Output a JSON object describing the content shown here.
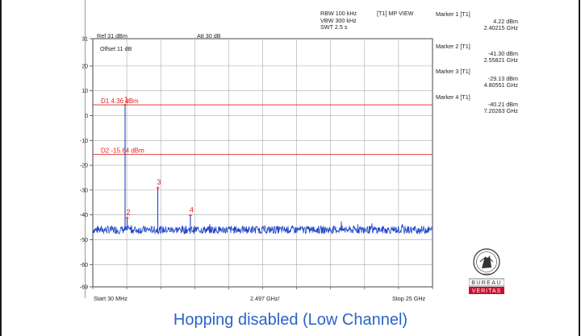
{
  "header": {
    "rbw": "RBW 100 kHz",
    "vbw": "VBW 300 kHz",
    "swt": "SWT 2.5 s",
    "trace_mode": "[T1] MP VIEW",
    "ref_level": "Ref 31 dBm",
    "attenuation": "Att  30 dB",
    "offset": "Offset 11 dB"
  },
  "markers": [
    {
      "name": "Marker 1 [T1]",
      "level": "4.22 dBm",
      "freq": "2.40215 GHz"
    },
    {
      "name": "Marker 2 [T1]",
      "level": "-41.30 dBm",
      "freq": "2.55821 GHz"
    },
    {
      "name": "Marker 3 [T1]",
      "level": "-29.13 dBm",
      "freq": "4.80551 GHz"
    },
    {
      "name": "Marker 4 [T1]",
      "level": "-40.21 dBm",
      "freq": "7.20263 GHz"
    }
  ],
  "display_lines": [
    {
      "label": "D1 4.36 dBm",
      "level_dbm": 4.36
    },
    {
      "label": "D2 -15.64 dBm",
      "level_dbm": -15.64
    }
  ],
  "footer": {
    "start": "Start 30 MHz",
    "center": "2.497 GHz/",
    "stop": "Stop 25 GHz"
  },
  "logo": {
    "line1": "BUREAU",
    "line2": "VERITAS",
    "year": "1828",
    "color": "#c8102e"
  },
  "caption": "Hopping disabled (Low Channel)",
  "chart_data": {
    "type": "line",
    "x_start_mhz": 30,
    "x_stop_mhz": 25000,
    "x_div_mhz": 2497,
    "ylim": [
      -69,
      31
    ],
    "y_ticks": [
      "31",
      "20",
      "10",
      "0",
      "-10",
      "-20",
      "-30",
      "-40",
      "-50",
      "-60",
      "-69"
    ],
    "grid": true,
    "noise_floor_dbm": -46,
    "peaks": [
      {
        "label": "1",
        "freq_ghz": 2.40215,
        "level_dbm": 4.22
      },
      {
        "label": "2",
        "freq_ghz": 2.55821,
        "level_dbm": -41.3
      },
      {
        "label": "3",
        "freq_ghz": 4.80551,
        "level_dbm": -29.13
      },
      {
        "label": "4",
        "freq_ghz": 7.20263,
        "level_dbm": -40.21
      }
    ],
    "trace_color": "#1f45c8",
    "line_color": "#e02020"
  }
}
